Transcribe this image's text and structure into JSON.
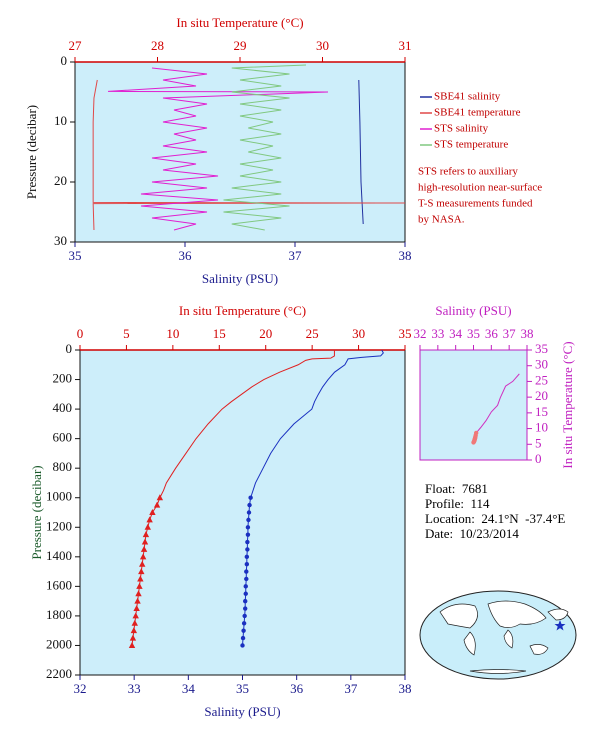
{
  "chart_data": [
    {
      "type": "line",
      "xlabel": "Salinity (PSU)",
      "x2_label": "In situ Temperature (°C)",
      "ylabel": "Pressure (decibar)",
      "xlim": [
        35,
        38
      ],
      "xticks": [
        35,
        36,
        37,
        38
      ],
      "x2lim": [
        27,
        31
      ],
      "x2ticks": [
        27,
        28,
        29,
        30,
        31
      ],
      "ylim": [
        0,
        30
      ],
      "yticks": [
        0,
        10,
        20,
        30
      ],
      "y_inverted": true,
      "x_color": "#1a1a8c",
      "x2_color": "#d00000",
      "y_color": "#111111",
      "background": "#cdeefa",
      "legend": "right",
      "note": [
        "STS refers to auxiliary",
        "high-resolution near-surface",
        "T-S measurements funded",
        "by NASA."
      ],
      "series": [
        {
          "name": "SBE41 salinity",
          "color": "#2030a0",
          "axis": "x",
          "pressure": [
            3,
            10,
            20,
            27
          ],
          "values": [
            37.58,
            37.59,
            37.6,
            37.62
          ]
        },
        {
          "name": "SBE41 temperature",
          "color": "#e04848",
          "axis": "x2",
          "pressure": [
            3,
            6,
            10,
            15,
            20,
            23.4,
            23.5,
            23.6,
            28
          ],
          "values": [
            27.27,
            27.23,
            27.22,
            27.22,
            27.22,
            27.22,
            31,
            27.22,
            27.23
          ]
        },
        {
          "name": "STS salinity",
          "color": "#e020d0",
          "axis": "x",
          "pressure": [
            1,
            2,
            3,
            4,
            4.9,
            5,
            6,
            7,
            8,
            9,
            10,
            11,
            12,
            13,
            14,
            15,
            16,
            17,
            18,
            19,
            20,
            21,
            22,
            23,
            24,
            25,
            26,
            27,
            28
          ],
          "values": [
            35.7,
            36.2,
            35.8,
            36.1,
            35.3,
            37.3,
            35.8,
            36.2,
            35.9,
            36.1,
            35.8,
            36.2,
            35.9,
            36.1,
            35.8,
            36.2,
            35.7,
            36.1,
            35.8,
            36.3,
            35.7,
            36.2,
            35.6,
            36.3,
            35.6,
            36.2,
            35.7,
            36.1,
            35.9
          ]
        },
        {
          "name": "STS temperature",
          "color": "#80c880",
          "axis": "x2",
          "pressure": [
            0.5,
            1,
            2,
            3,
            4,
            5,
            6,
            7,
            8,
            9,
            10,
            11,
            12,
            13,
            14,
            15,
            16,
            17,
            18,
            19,
            20,
            21,
            22,
            23,
            24,
            25,
            26,
            27,
            28
          ],
          "values": [
            29.8,
            28.9,
            29.6,
            29.0,
            29.5,
            28.9,
            29.6,
            29.0,
            29.5,
            29.0,
            29.4,
            29.1,
            29.5,
            29.0,
            29.4,
            29.1,
            29.5,
            29.0,
            29.4,
            29.0,
            29.5,
            28.9,
            29.5,
            28.8,
            29.6,
            28.8,
            29.5,
            28.9,
            29.3
          ]
        }
      ]
    },
    {
      "type": "line",
      "xlabel": "Salinity (PSU)",
      "x2_label": "In situ Temperature (°C)",
      "ylabel": "Pressure (decibar)",
      "xlim": [
        32,
        38
      ],
      "xticks": [
        32,
        33,
        34,
        35,
        36,
        37,
        38
      ],
      "x2lim": [
        0,
        35
      ],
      "x2ticks": [
        0,
        5,
        10,
        15,
        20,
        25,
        30,
        35
      ],
      "ylim": [
        0,
        2200
      ],
      "yticks": [
        0,
        200,
        400,
        600,
        800,
        1000,
        1200,
        1400,
        1600,
        1800,
        2000,
        2200
      ],
      "y_inverted": true,
      "x_color": "#1a1a8c",
      "x2_color": "#d00000",
      "y_color": "#1a5a2a",
      "background": "#cdeefa",
      "series": [
        {
          "color": "#e02020",
          "axis": "x2",
          "pressure": [
            0,
            20,
            40,
            55,
            60,
            70,
            100,
            150,
            200,
            250,
            300,
            350,
            400,
            500,
            600,
            700,
            800,
            850,
            900,
            950,
            1000
          ],
          "values": [
            27.4,
            27.4,
            27.4,
            27.0,
            25.0,
            24.3,
            23.5,
            21.5,
            19.8,
            18.5,
            17.4,
            16.3,
            15.3,
            13.8,
            12.5,
            11.4,
            10.3,
            9.8,
            9.3,
            9.0,
            8.6
          ]
        },
        {
          "color": "#e02020",
          "axis": "x2",
          "marker": "triangle",
          "pressure": [
            1000,
            1050,
            1100,
            1150,
            1200,
            1250,
            1300,
            1350,
            1400,
            1450,
            1500,
            1550,
            1600,
            1650,
            1700,
            1750,
            1800,
            1850,
            1900,
            1950,
            2000
          ],
          "values": [
            8.6,
            8.3,
            7.8,
            7.5,
            7.3,
            7.1,
            7.0,
            6.9,
            6.8,
            6.7,
            6.6,
            6.5,
            6.4,
            6.3,
            6.2,
            6.1,
            6.0,
            5.9,
            5.8,
            5.7,
            5.6
          ]
        },
        {
          "color": "#1a30c0",
          "axis": "x",
          "pressure": [
            0,
            20,
            40,
            50,
            60,
            100,
            150,
            200,
            250,
            300,
            350,
            400,
            500,
            600,
            700,
            800,
            900,
            1000
          ],
          "values": [
            37.57,
            37.6,
            37.55,
            37.2,
            36.95,
            36.89,
            36.7,
            36.58,
            36.48,
            36.4,
            36.33,
            36.28,
            35.95,
            35.7,
            35.52,
            35.38,
            35.24,
            35.15
          ]
        },
        {
          "color": "#1a30c0",
          "axis": "x",
          "marker": "circle",
          "pressure": [
            1000,
            1050,
            1100,
            1150,
            1200,
            1250,
            1300,
            1350,
            1400,
            1450,
            1500,
            1550,
            1600,
            1650,
            1700,
            1750,
            1800,
            1850,
            1900,
            1950,
            2000
          ],
          "values": [
            35.15,
            35.13,
            35.12,
            35.11,
            35.1,
            35.1,
            35.09,
            35.09,
            35.08,
            35.08,
            35.07,
            35.07,
            35.06,
            35.06,
            35.05,
            35.05,
            35.04,
            35.03,
            35.02,
            35.01,
            35.0
          ]
        }
      ]
    },
    {
      "type": "line",
      "xlabel": "Salinity (PSU)",
      "ylabel": "In situ Temperature (°C)",
      "xlim": [
        32,
        38
      ],
      "xticks": [
        32,
        33,
        34,
        35,
        36,
        37,
        38
      ],
      "xaxis_side": "top",
      "ylim": [
        0,
        35
      ],
      "yticks": [
        0,
        5,
        10,
        15,
        20,
        25,
        30,
        35
      ],
      "yaxis_side": "right",
      "x_color": "#c020c0",
      "y_color": "#c020c0",
      "background": "#cdeefa",
      "series": [
        {
          "color": "#d030c0",
          "x": [
            35.05,
            35.15,
            35.4,
            35.7,
            36.0,
            36.35,
            36.5,
            36.8,
            37.2,
            37.57
          ],
          "values": [
            5.6,
            8.6,
            10.3,
            12.5,
            15.3,
            17.4,
            19.8,
            23.5,
            25.0,
            27.4
          ]
        },
        {
          "color": "#f07878",
          "marker": "circle",
          "line": false,
          "x": [
            35.15,
            35.12,
            35.1,
            35.09,
            35.08,
            35.07,
            35.06,
            35.05,
            35.04,
            35.02,
            35.0
          ],
          "values": [
            8.6,
            7.8,
            7.3,
            7.0,
            6.8,
            6.6,
            6.4,
            6.2,
            6.0,
            5.8,
            5.6
          ]
        }
      ]
    }
  ],
  "info_lines": [
    "Float:  7681",
    "Profile:  114",
    "Location:  24.1°N  -37.4°E",
    "Date:  10/23/2014"
  ]
}
